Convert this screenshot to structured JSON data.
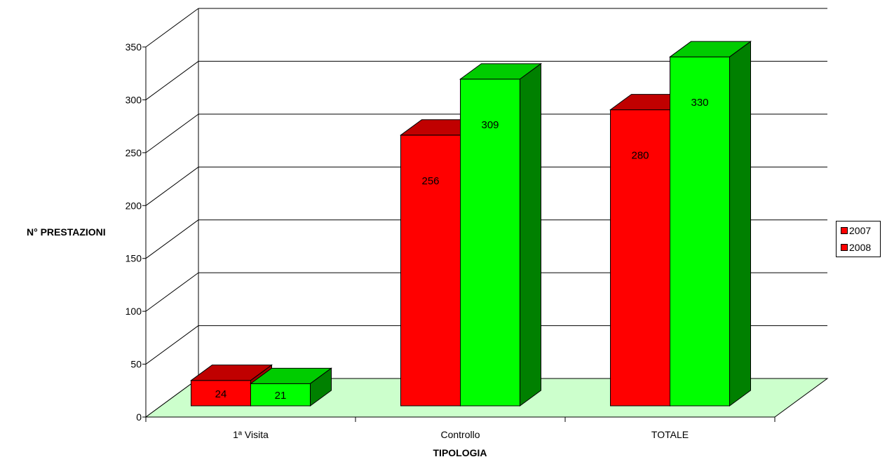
{
  "chart_data": {
    "type": "bar",
    "title": "",
    "xlabel": "TIPOLOGIA",
    "ylabel": "N° PRESTAZIONI",
    "categories": [
      "1ª Visita",
      "Controllo",
      "TOTALE"
    ],
    "series": [
      {
        "name": "2007",
        "values": [
          24,
          256,
          280
        ],
        "color": "#ff0000",
        "top_color": "#c00000",
        "side_color": "#a00000"
      },
      {
        "name": "2008",
        "values": [
          21,
          309,
          330
        ],
        "color": "#00ff00",
        "top_color": "#00cc00",
        "side_color": "#008000"
      }
    ],
    "ylim": [
      0,
      350
    ],
    "yticks": [
      "0",
      "50",
      "100",
      "150",
      "200",
      "250",
      "300",
      "350"
    ],
    "grid": true,
    "legend_position": "right",
    "floor_color": "#ccffcc",
    "three_d": true
  }
}
